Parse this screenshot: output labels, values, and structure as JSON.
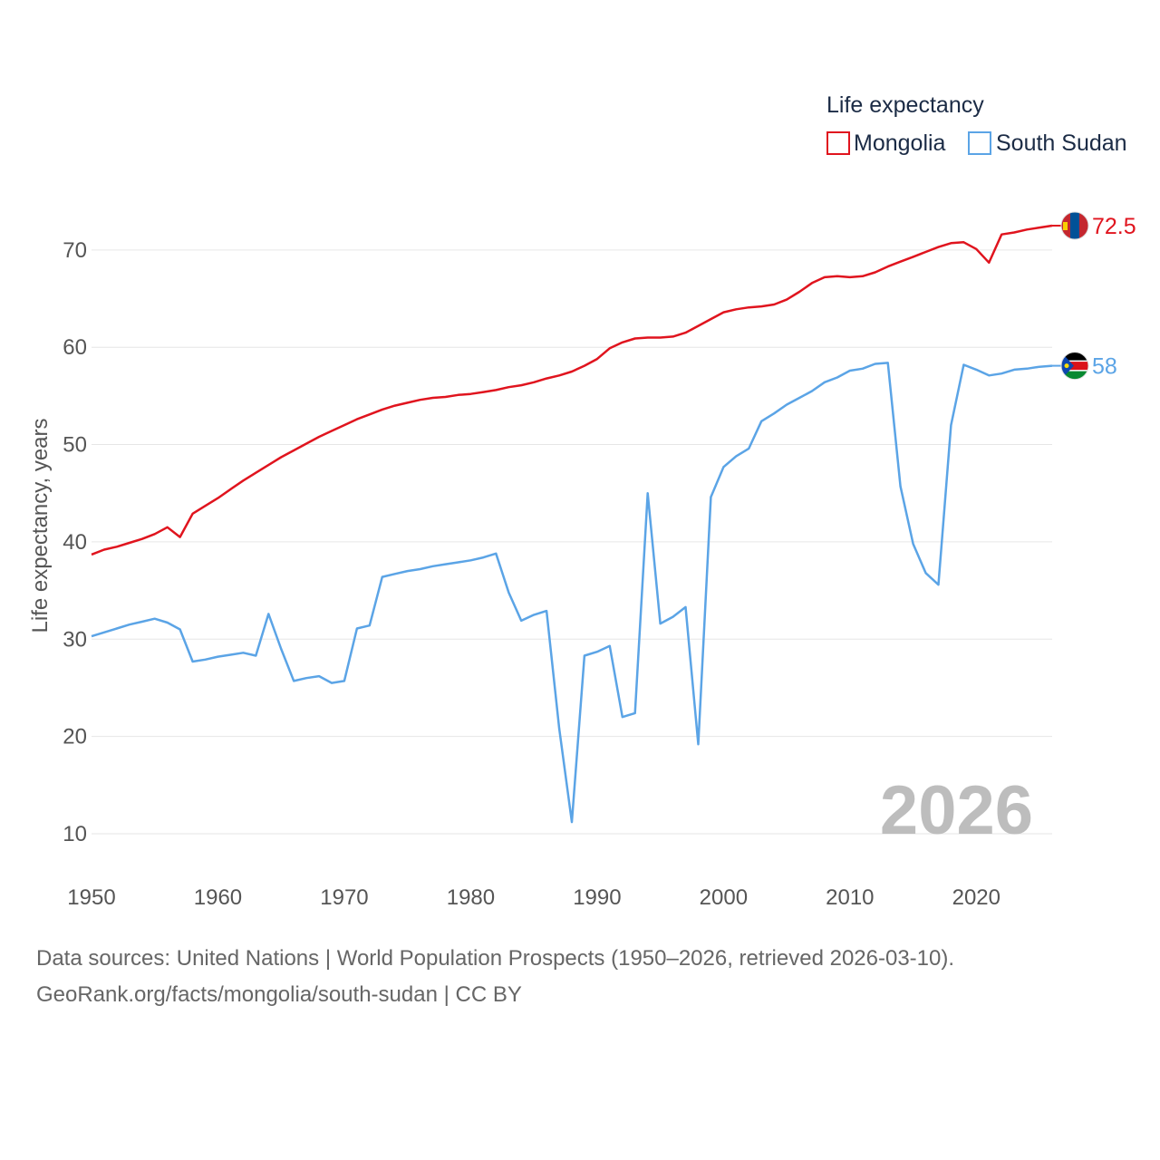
{
  "colors": {
    "mongolia": "#e0141e",
    "south_sudan": "#5ba4e6",
    "grid": "#e6e6e6"
  },
  "legend": {
    "title": "Life expectancy",
    "items": [
      {
        "label": "Mongolia",
        "series": "Mongolia"
      },
      {
        "label": "South Sudan",
        "series": "South Sudan"
      }
    ]
  },
  "end_labels": {
    "mongolia": "72.5",
    "south_sudan": "58"
  },
  "year_stamp": "2026",
  "footer": {
    "line1": "Data sources: United Nations | World Population Prospects (1950–2026, retrieved 2026-03-10).",
    "line2": "GeoRank.org/facts/mongolia/south-sudan | CC BY"
  },
  "chart_data": {
    "type": "line",
    "title": "Life expectancy",
    "xlabel": "",
    "ylabel": "Life expectancy, years",
    "xlim": [
      1950,
      2026
    ],
    "ylim": [
      10,
      72.5
    ],
    "xticks": [
      1950,
      1960,
      1970,
      1980,
      1990,
      2000,
      2010,
      2020
    ],
    "yticks": [
      10,
      20,
      30,
      40,
      50,
      60,
      70
    ],
    "x": [
      1950,
      1951,
      1952,
      1953,
      1954,
      1955,
      1956,
      1957,
      1958,
      1959,
      1960,
      1961,
      1962,
      1963,
      1964,
      1965,
      1966,
      1967,
      1968,
      1969,
      1970,
      1971,
      1972,
      1973,
      1974,
      1975,
      1976,
      1977,
      1978,
      1979,
      1980,
      1981,
      1982,
      1983,
      1984,
      1985,
      1986,
      1987,
      1988,
      1989,
      1990,
      1991,
      1992,
      1993,
      1994,
      1995,
      1996,
      1997,
      1998,
      1999,
      2000,
      2001,
      2002,
      2003,
      2004,
      2005,
      2006,
      2007,
      2008,
      2009,
      2010,
      2011,
      2012,
      2013,
      2014,
      2015,
      2016,
      2017,
      2018,
      2019,
      2020,
      2021,
      2022,
      2023,
      2024,
      2025,
      2026
    ],
    "series": [
      {
        "name": "Mongolia",
        "values": [
          38.7,
          39.2,
          39.5,
          39.9,
          40.3,
          40.8,
          41.5,
          40.5,
          42.9,
          43.7,
          44.5,
          45.4,
          46.3,
          47.1,
          47.9,
          48.7,
          49.4,
          50.1,
          50.8,
          51.4,
          52.0,
          52.6,
          53.1,
          53.6,
          54.0,
          54.3,
          54.6,
          54.8,
          54.9,
          55.1,
          55.2,
          55.4,
          55.6,
          55.9,
          56.1,
          56.4,
          56.8,
          57.1,
          57.5,
          58.1,
          58.8,
          59.9,
          60.5,
          60.9,
          61.0,
          61.0,
          61.1,
          61.5,
          62.2,
          62.9,
          63.6,
          63.9,
          64.1,
          64.2,
          64.4,
          64.9,
          65.7,
          66.6,
          67.2,
          67.3,
          67.2,
          67.3,
          67.7,
          68.3,
          68.8,
          69.3,
          69.8,
          70.3,
          70.7,
          70.8,
          70.1,
          68.7,
          71.6,
          71.8,
          72.1,
          72.3,
          72.5
        ]
      },
      {
        "name": "South Sudan",
        "values": [
          30.3,
          30.7,
          31.1,
          31.5,
          31.8,
          32.1,
          31.7,
          31.0,
          27.7,
          27.9,
          28.2,
          28.4,
          28.6,
          28.3,
          32.6,
          29.0,
          25.7,
          26.0,
          26.2,
          25.5,
          25.7,
          31.1,
          31.4,
          36.4,
          36.7,
          37.0,
          37.2,
          37.5,
          37.7,
          37.9,
          38.1,
          38.4,
          38.8,
          34.8,
          31.9,
          32.5,
          32.9,
          20.8,
          11.2,
          28.3,
          28.7,
          29.3,
          22.0,
          22.4,
          45.0,
          31.6,
          32.3,
          33.3,
          19.2,
          44.6,
          47.7,
          48.8,
          49.6,
          52.4,
          53.2,
          54.1,
          54.8,
          55.5,
          56.4,
          56.9,
          57.6,
          57.8,
          58.3,
          58.4,
          45.7,
          39.8,
          36.8,
          35.6,
          52.0,
          58.2,
          57.7,
          57.1,
          57.3,
          57.7,
          57.8,
          58.0,
          58.1
        ]
      }
    ]
  }
}
